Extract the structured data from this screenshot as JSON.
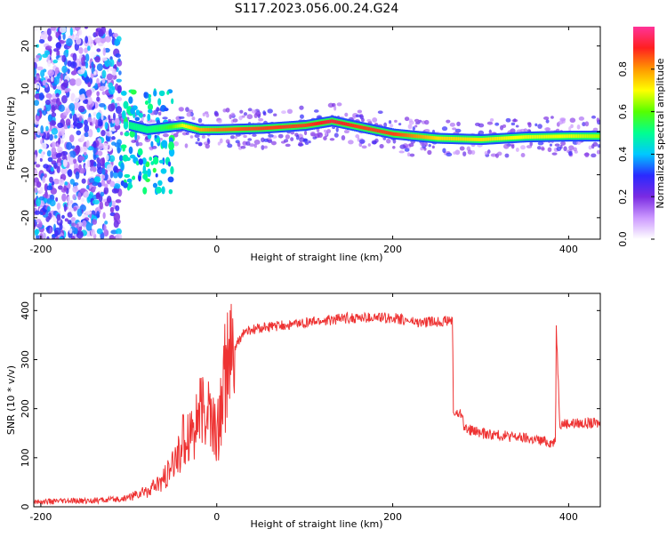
{
  "title": "S117.2023.056.00.24.G24",
  "chart_data": [
    {
      "type": "heatmap",
      "xlabel": "Height of straight line (km)",
      "ylabel": "Frequency (Hz)",
      "xlim": [
        -208,
        436
      ],
      "ylim": [
        -25,
        24.5
      ],
      "xticks": [
        -200,
        0,
        200,
        400
      ],
      "yticks": [
        -20,
        -10,
        0,
        10,
        20
      ],
      "colorbar": {
        "label": "Normalized spectral amplitude",
        "range": [
          0,
          1
        ],
        "ticks": [
          "0.0",
          "0.2",
          "0.4",
          "0.6",
          "0.8"
        ],
        "colors": [
          "#ffffff",
          "#cc99ff",
          "#7a2be2",
          "#2a2aff",
          "#00c8ff",
          "#00ff90",
          "#55ff00",
          "#ffff00",
          "#ff9900",
          "#ff2020",
          "#ff3399"
        ]
      },
      "ridge": {
        "x": [
          -135,
          -100,
          -80,
          -60,
          -40,
          -20,
          0,
          50,
          100,
          130,
          160,
          200,
          250,
          300,
          350,
          400,
          436
        ],
        "frequency": [
          2,
          1.5,
          0.5,
          1,
          1.5,
          0.5,
          0.5,
          0.8,
          1.5,
          2.5,
          1.2,
          -0.5,
          -1.5,
          -1.8,
          -1.2,
          -1.0,
          -1.0
        ],
        "amplitude": [
          0.3,
          0.55,
          0.55,
          0.6,
          0.75,
          0.85,
          0.9,
          0.95,
          0.95,
          1.0,
          0.95,
          0.95,
          0.8,
          0.8,
          0.75,
          0.75,
          0.7
        ]
      },
      "noise_region_x": [
        -208,
        -110
      ]
    },
    {
      "type": "line",
      "xlabel": "Height of straight line (km)",
      "ylabel": "SNR (10 * v/v)",
      "xlim": [
        -208,
        436
      ],
      "ylim": [
        0,
        435
      ],
      "xticks": [
        -200,
        0,
        200,
        400
      ],
      "yticks": [
        0,
        100,
        200,
        300,
        400
      ],
      "color": "#ee3333",
      "series": [
        {
          "x": [
            -208,
            -150,
            -110,
            -90,
            -70,
            -60,
            -50,
            -40,
            -30,
            -20,
            -10,
            0,
            10,
            20,
            30,
            50,
            80,
            100,
            150,
            200,
            230,
            268,
            269,
            280,
            281,
            300,
            350,
            385,
            386,
            390,
            436
          ],
          "y": [
            10,
            12,
            15,
            25,
            40,
            55,
            80,
            130,
            160,
            180,
            200,
            140,
            270,
            320,
            355,
            365,
            370,
            375,
            385,
            385,
            375,
            380,
            190,
            190,
            160,
            150,
            140,
            130,
            370,
            170,
            170
          ]
        }
      ]
    }
  ]
}
